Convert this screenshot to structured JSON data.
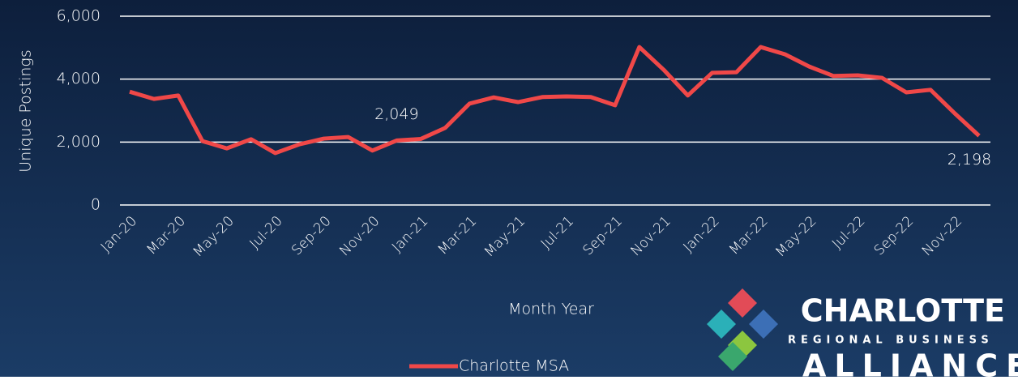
{
  "chart_data": {
    "type": "line",
    "y_axis_label": "Unique Postings",
    "x_axis_label": "Month Year",
    "categories": [
      "Jan-20",
      null,
      "Mar-20",
      null,
      "May-20",
      null,
      "Jul-20",
      null,
      "Sep-20",
      null,
      "Nov-20",
      null,
      "Jan-21",
      null,
      "Mar-21",
      null,
      "May-21",
      null,
      "Jul-21",
      null,
      "Sep-21",
      null,
      "Nov-21",
      null,
      "Jan-22",
      null,
      "Mar-22",
      null,
      "May-22",
      null,
      "Jul-22",
      null,
      "Sep-22",
      null,
      "Nov-22",
      null
    ],
    "series": [
      {
        "name": "Charlotte MSA",
        "color": "#f04848",
        "values": [
          3600,
          3370,
          3480,
          2030,
          1800,
          2090,
          1650,
          1930,
          2110,
          2160,
          1730,
          2049,
          2100,
          2450,
          3220,
          3420,
          3270,
          3430,
          3450,
          3430,
          3170,
          5020,
          4300,
          3480,
          4200,
          4220,
          5020,
          4790,
          4400,
          4100,
          4120,
          4040,
          3580,
          3660,
          2910,
          2198
        ],
        "value_labels": [
          null,
          null,
          null,
          null,
          null,
          null,
          null,
          null,
          null,
          null,
          null,
          "2,049",
          null,
          null,
          null,
          null,
          null,
          null,
          null,
          null,
          null,
          null,
          null,
          null,
          null,
          null,
          null,
          null,
          null,
          null,
          null,
          null,
          null,
          null,
          null,
          "2,198"
        ]
      }
    ],
    "ylim": [
      0,
      6000
    ],
    "yticks": [
      0,
      {
        "value": 2000,
        "label": "2,000"
      },
      {
        "value": 4000,
        "label": "4,000"
      },
      {
        "value": 6000,
        "label": "6,000"
      }
    ],
    "grid": true,
    "legend": "bottom"
  },
  "logo": {
    "line1": "CHARLOTTE",
    "line2": "REGIONAL BUSINESS",
    "line3": "ALLIANCE"
  }
}
